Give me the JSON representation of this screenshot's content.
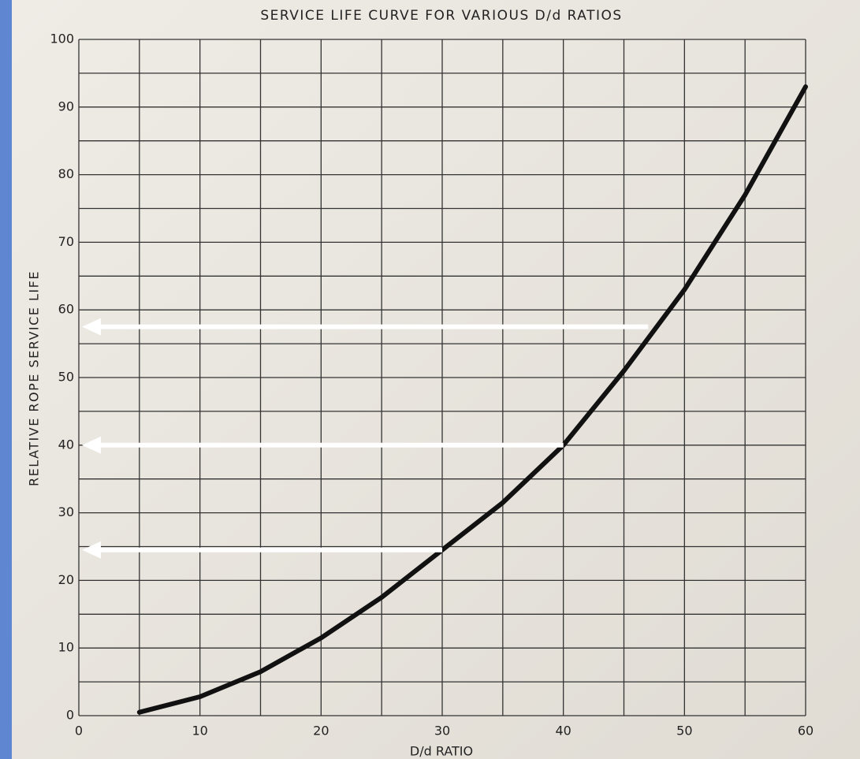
{
  "chart_data": {
    "type": "line",
    "title": "SERVICE LIFE CURVE FOR VARIOUS D/d RATIOS",
    "x_label": "D/d RATIO",
    "y_label": "RELATIVE ROPE SERVICE LIFE",
    "x": [
      5,
      10,
      15,
      20,
      25,
      30,
      35,
      40,
      45,
      50,
      55,
      60
    ],
    "series": [
      {
        "color": "#111111",
        "values": [
          0.5,
          2.8,
          6.5,
          11.5,
          17.5,
          24.5,
          31.5,
          40,
          51,
          63,
          77,
          93
        ]
      }
    ],
    "xlim": [
      0,
      60
    ],
    "ylim": [
      0,
      100
    ],
    "xticks": [
      0,
      10,
      20,
      30,
      40,
      50,
      60
    ],
    "yticks": [
      0,
      10,
      20,
      30,
      40,
      50,
      60,
      70,
      80,
      90,
      100
    ],
    "xgrid": [
      0,
      5,
      10,
      15,
      20,
      25,
      30,
      35,
      40,
      45,
      50,
      55,
      60
    ],
    "ygrid": [
      0,
      5,
      10,
      15,
      20,
      25,
      30,
      35,
      40,
      45,
      50,
      55,
      60,
      65,
      70,
      75,
      80,
      85,
      90,
      95,
      100
    ],
    "arrows": [
      {
        "x": 47,
        "y": 57.5
      },
      {
        "x": 40,
        "y": 40
      },
      {
        "x": 30,
        "y": 24.5
      }
    ],
    "arrow_color": "#ffffff"
  }
}
